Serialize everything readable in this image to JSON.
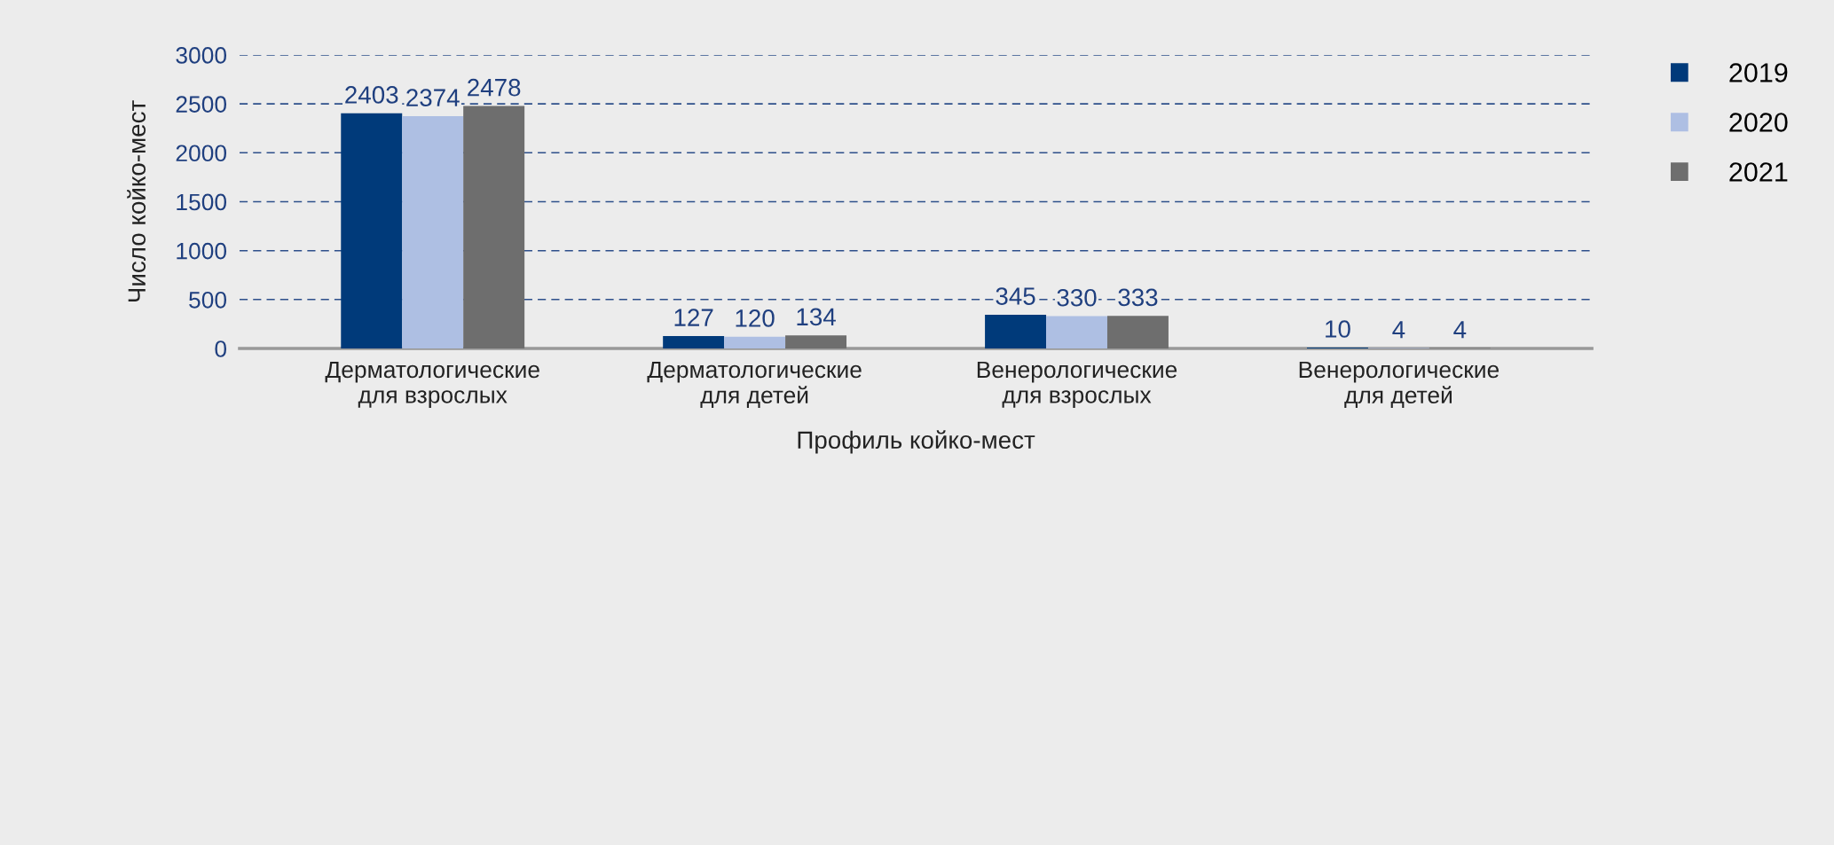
{
  "chart_data": {
    "type": "bar",
    "xlabel": "Профиль койко-мест",
    "ylabel": "Число койко-мест",
    "categories": [
      "Дерматологические\nдля взрослых",
      "Дерматологические\nдля детей",
      "Венерологические\nдля взрослых",
      "Венерологические\nдля детей"
    ],
    "series": [
      {
        "name": "2019",
        "color": "#003a7a",
        "values": [
          2403,
          127,
          345,
          10
        ]
      },
      {
        "name": "2020",
        "color": "#aebfe3",
        "values": [
          2374,
          120,
          330,
          4
        ]
      },
      {
        "name": "2021",
        "color": "#6e6e6e",
        "values": [
          2478,
          134,
          333,
          4
        ]
      }
    ],
    "ylim": [
      0,
      3000
    ],
    "yticks": [
      0,
      500,
      1000,
      1500,
      2000,
      2500,
      3000
    ],
    "grid": "y",
    "legend": "top right",
    "data_labels": true
  }
}
